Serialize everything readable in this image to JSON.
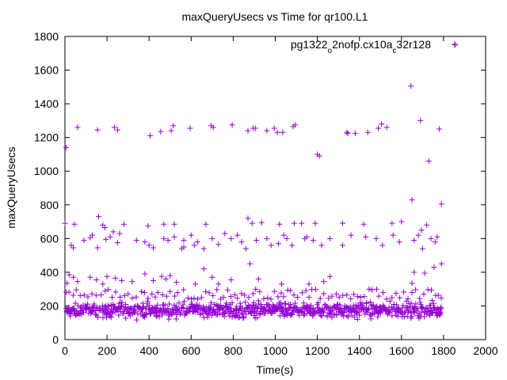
{
  "chart_data": {
    "type": "scatter",
    "title": "maxQueryUsecs vs Time for qr100.L1",
    "xlabel": "Time(s)",
    "ylabel": "maxQueryUsecs",
    "xlim": [
      0,
      2000
    ],
    "ylim": [
      0,
      1800
    ],
    "x_ticks": [
      "0",
      "200",
      "400",
      "600",
      "800",
      "1000",
      "1200",
      "1400",
      "1600",
      "1800",
      "2000"
    ],
    "y_ticks": [
      "0",
      "200",
      "400",
      "600",
      "800",
      "1000",
      "1200",
      "1400",
      "1600",
      "1800"
    ],
    "grid": false,
    "legend_position": "top-right",
    "marker": "+",
    "color": "#9400d3",
    "series": [
      {
        "name": "pg1322_o2nofp.cx10a_c32r128",
        "legend_parts": [
          {
            "text": "pg1322",
            "sub": false
          },
          {
            "text": "o",
            "sub": true
          },
          {
            "text": "2nofp.cx10a",
            "sub": false
          },
          {
            "text": "c",
            "sub": true
          },
          {
            "text": "32r128",
            "sub": false
          }
        ],
        "points": [
          [
            1855,
            1750
          ],
          [
            1645,
            1505
          ],
          [
            1690,
            1300
          ],
          [
            1730,
            1060
          ],
          [
            1650,
            830
          ],
          [
            1790,
            805
          ],
          [
            1200,
            1100
          ],
          [
            1210,
            1090
          ],
          [
            1340,
            1230
          ],
          [
            1345,
            1225
          ],
          [
            1380,
            1225
          ],
          [
            1440,
            1230
          ],
          [
            5,
            1140
          ],
          [
            60,
            1260
          ],
          [
            155,
            1245
          ],
          [
            235,
            1260
          ],
          [
            250,
            1245
          ],
          [
            405,
            1210
          ],
          [
            455,
            1235
          ],
          [
            505,
            1240
          ],
          [
            515,
            1270
          ],
          [
            595,
            1255
          ],
          [
            695,
            1270
          ],
          [
            705,
            1260
          ],
          [
            795,
            1275
          ],
          [
            870,
            1240
          ],
          [
            895,
            1255
          ],
          [
            905,
            1255
          ],
          [
            960,
            1240
          ],
          [
            995,
            1255
          ],
          [
            1010,
            1230
          ],
          [
            1035,
            1230
          ],
          [
            1085,
            1265
          ],
          [
            1095,
            1275
          ],
          [
            1490,
            1255
          ],
          [
            1505,
            1280
          ],
          [
            1530,
            1260
          ],
          [
            1780,
            1250
          ],
          [
            0,
            690
          ],
          [
            45,
            685
          ],
          [
            160,
            730
          ],
          [
            180,
            680
          ],
          [
            190,
            665
          ],
          [
            280,
            685
          ],
          [
            395,
            675
          ],
          [
            470,
            685
          ],
          [
            520,
            685
          ],
          [
            555,
            540
          ],
          [
            565,
            550
          ],
          [
            660,
            540
          ],
          [
            670,
            685
          ],
          [
            870,
            720
          ],
          [
            890,
            690
          ],
          [
            935,
            695
          ],
          [
            1020,
            685
          ],
          [
            1090,
            690
          ],
          [
            1125,
            690
          ],
          [
            1190,
            690
          ],
          [
            1320,
            690
          ],
          [
            1420,
            685
          ],
          [
            1555,
            690
          ],
          [
            1600,
            700
          ],
          [
            1695,
            650
          ],
          [
            1720,
            680
          ],
          [
            1740,
            600
          ],
          [
            30,
            560
          ],
          [
            40,
            545
          ],
          [
            90,
            590
          ],
          [
            120,
            605
          ],
          [
            130,
            620
          ],
          [
            155,
            545
          ],
          [
            195,
            595
          ],
          [
            215,
            610
          ],
          [
            230,
            640
          ],
          [
            250,
            575
          ],
          [
            260,
            630
          ],
          [
            340,
            590
          ],
          [
            380,
            580
          ],
          [
            400,
            560
          ],
          [
            420,
            545
          ],
          [
            470,
            600
          ],
          [
            490,
            590
          ],
          [
            520,
            610
          ],
          [
            565,
            590
          ],
          [
            600,
            620
          ],
          [
            615,
            560
          ],
          [
            630,
            580
          ],
          [
            700,
            600
          ],
          [
            730,
            565
          ],
          [
            760,
            630
          ],
          [
            790,
            600
          ],
          [
            820,
            620
          ],
          [
            840,
            580
          ],
          [
            860,
            540
          ],
          [
            910,
            590
          ],
          [
            960,
            600
          ],
          [
            980,
            560
          ],
          [
            1015,
            570
          ],
          [
            1040,
            620
          ],
          [
            1055,
            600
          ],
          [
            1080,
            560
          ],
          [
            1140,
            600
          ],
          [
            1150,
            610
          ],
          [
            1180,
            590
          ],
          [
            1220,
            560
          ],
          [
            1260,
            600
          ],
          [
            1320,
            560
          ],
          [
            1360,
            620
          ],
          [
            1430,
            610
          ],
          [
            1480,
            600
          ],
          [
            1510,
            560
          ],
          [
            1560,
            620
          ],
          [
            1590,
            580
          ],
          [
            1660,
            590
          ],
          [
            1680,
            620
          ],
          [
            1700,
            540
          ],
          [
            1760,
            580
          ],
          [
            1770,
            610
          ],
          [
            10,
            335
          ],
          [
            20,
            385
          ],
          [
            40,
            370
          ],
          [
            60,
            345
          ],
          [
            120,
            370
          ],
          [
            150,
            355
          ],
          [
            180,
            330
          ],
          [
            200,
            375
          ],
          [
            240,
            365
          ],
          [
            270,
            350
          ],
          [
            320,
            345
          ],
          [
            380,
            390
          ],
          [
            420,
            350
          ],
          [
            460,
            375
          ],
          [
            480,
            360
          ],
          [
            500,
            380
          ],
          [
            530,
            340
          ],
          [
            620,
            330
          ],
          [
            660,
            420
          ],
          [
            700,
            370
          ],
          [
            730,
            330
          ],
          [
            790,
            355
          ],
          [
            880,
            450
          ],
          [
            920,
            360
          ],
          [
            1030,
            330
          ],
          [
            1160,
            330
          ],
          [
            1230,
            345
          ],
          [
            1260,
            375
          ],
          [
            1650,
            335
          ],
          [
            1660,
            400
          ],
          [
            1710,
            395
          ],
          [
            1755,
            430
          ],
          [
            1790,
            450
          ]
        ],
        "band": {
          "x_start": 5,
          "x_end": 1790,
          "step": 3,
          "y_min": 110,
          "y_max": 240,
          "y_center": 165,
          "high_outliers_every": 9,
          "high_outlier_max": 300
        }
      }
    ]
  }
}
